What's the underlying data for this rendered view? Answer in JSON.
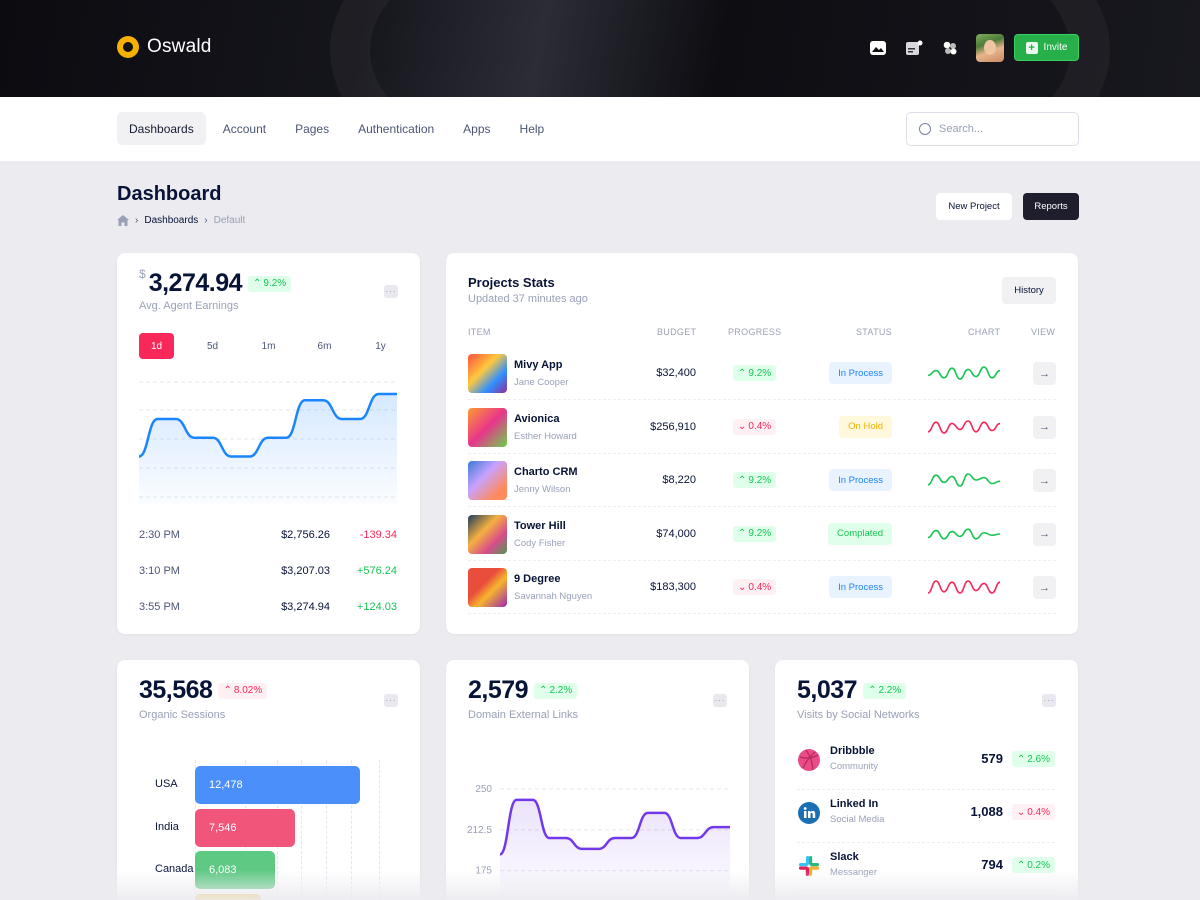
{
  "app": {
    "name": "Oswald"
  },
  "header": {
    "invite_label": "Invite"
  },
  "nav": {
    "items": [
      "Dashboards",
      "Account",
      "Pages",
      "Authentication",
      "Apps",
      "Help"
    ],
    "search_placeholder": "Search..."
  },
  "page": {
    "title": "Dashboard",
    "breadcrumb": [
      "Dashboards",
      "Default"
    ],
    "new_project": "New Project",
    "reports": "Reports"
  },
  "earnings": {
    "currency": "$",
    "value": "3,274.94",
    "change": "9.2%",
    "label": "Avg. Agent Earnings",
    "periods": [
      "1d",
      "5d",
      "1m",
      "6m",
      "1y"
    ],
    "series": [
      30,
      60,
      60,
      45,
      45,
      30,
      30,
      45,
      45,
      75,
      75,
      60,
      60,
      80,
      80
    ],
    "rows": [
      {
        "time": "2:30 PM",
        "amount": "$2,756.26",
        "delta": "-139.34",
        "dir": "down"
      },
      {
        "time": "3:10 PM",
        "amount": "$3,207.03",
        "delta": "+576.24",
        "dir": "up"
      },
      {
        "time": "3:55 PM",
        "amount": "$3,274.94",
        "delta": "+124.03",
        "dir": "up"
      }
    ]
  },
  "projects": {
    "title": "Projects Stats",
    "updated": "Updated 37 minutes ago",
    "history": "History",
    "columns": [
      "ITEM",
      "BUDGET",
      "PROGRESS",
      "STATUS",
      "CHART",
      "VIEW"
    ],
    "rows": [
      {
        "name": "Mivy App",
        "owner": "Jane Cooper",
        "budget": "$32,400",
        "progress": "9.2%",
        "trend": "up",
        "status": "In Process",
        "status_style": "blue",
        "spark": [
          8,
          12,
          6,
          14,
          5,
          13,
          7,
          15,
          6,
          12
        ],
        "color": "#17c653"
      },
      {
        "name": "Avionica",
        "owner": "Esther Howard",
        "budget": "$256,910",
        "progress": "0.4%",
        "trend": "down",
        "status": "On Hold",
        "status_style": "yellow",
        "spark": [
          6,
          14,
          5,
          13,
          8,
          15,
          6,
          14,
          7,
          13
        ],
        "color": "#f8285a"
      },
      {
        "name": "Charto CRM",
        "owner": "Jenny Wilson",
        "budget": "$8,220",
        "progress": "9.2%",
        "trend": "up",
        "status": "In Process",
        "status_style": "blue",
        "spark": [
          6,
          14,
          8,
          13,
          5,
          15,
          10,
          12,
          7,
          9
        ],
        "color": "#17c653"
      },
      {
        "name": "Tower Hill",
        "owner": "Cody Fisher",
        "budget": "$74,000",
        "progress": "9.2%",
        "trend": "up",
        "status": "Complated",
        "status_style": "green",
        "spark": [
          7,
          13,
          6,
          12,
          8,
          14,
          6,
          11,
          9,
          10
        ],
        "color": "#17c653"
      },
      {
        "name": "9 Degree",
        "owner": "Savannah Nguyen",
        "budget": "$183,300",
        "progress": "0.4%",
        "trend": "down",
        "status": "In Process",
        "status_style": "blue",
        "spark": [
          5,
          15,
          6,
          14,
          5,
          15,
          7,
          13,
          5,
          14
        ],
        "color": "#f8285a"
      }
    ]
  },
  "sessions": {
    "value": "35,568",
    "change": "8.02%",
    "label": "Organic Sessions",
    "bars": [
      {
        "country": "USA",
        "value": 12478,
        "display": "12,478",
        "color": "#4b8ffb"
      },
      {
        "country": "India",
        "value": 7546,
        "display": "7,546",
        "color": "#f1557a"
      },
      {
        "country": "Canada",
        "value": 6083,
        "display": "6,083",
        "color": "#5ec983"
      },
      {
        "country": "",
        "value": 5000,
        "display": "",
        "color": "#f6c244"
      }
    ],
    "max": 15000
  },
  "links": {
    "value": "2,579",
    "change": "2.2%",
    "label": "Domain External Links",
    "y_ticks": [
      "250",
      "212.5",
      "175"
    ],
    "ylim": [
      150,
      260
    ],
    "series": [
      190,
      240,
      240,
      205,
      205,
      195,
      195,
      205,
      205,
      228,
      228,
      205,
      205,
      215,
      215
    ]
  },
  "social": {
    "value": "5,037",
    "change": "2.2%",
    "label": "Visits by Social Networks",
    "rows": [
      {
        "name": "Dribbble",
        "category": "Community",
        "value": "579",
        "change": "2.6%",
        "trend": "up",
        "icon": "dribbble-icon"
      },
      {
        "name": "Linked In",
        "category": "Social Media",
        "value": "1,088",
        "change": "0.4%",
        "trend": "down",
        "icon": "linkedin-icon"
      },
      {
        "name": "Slack",
        "category": "Messanger",
        "value": "794",
        "change": "0.2%",
        "trend": "up",
        "icon": "slack-icon"
      }
    ]
  }
}
